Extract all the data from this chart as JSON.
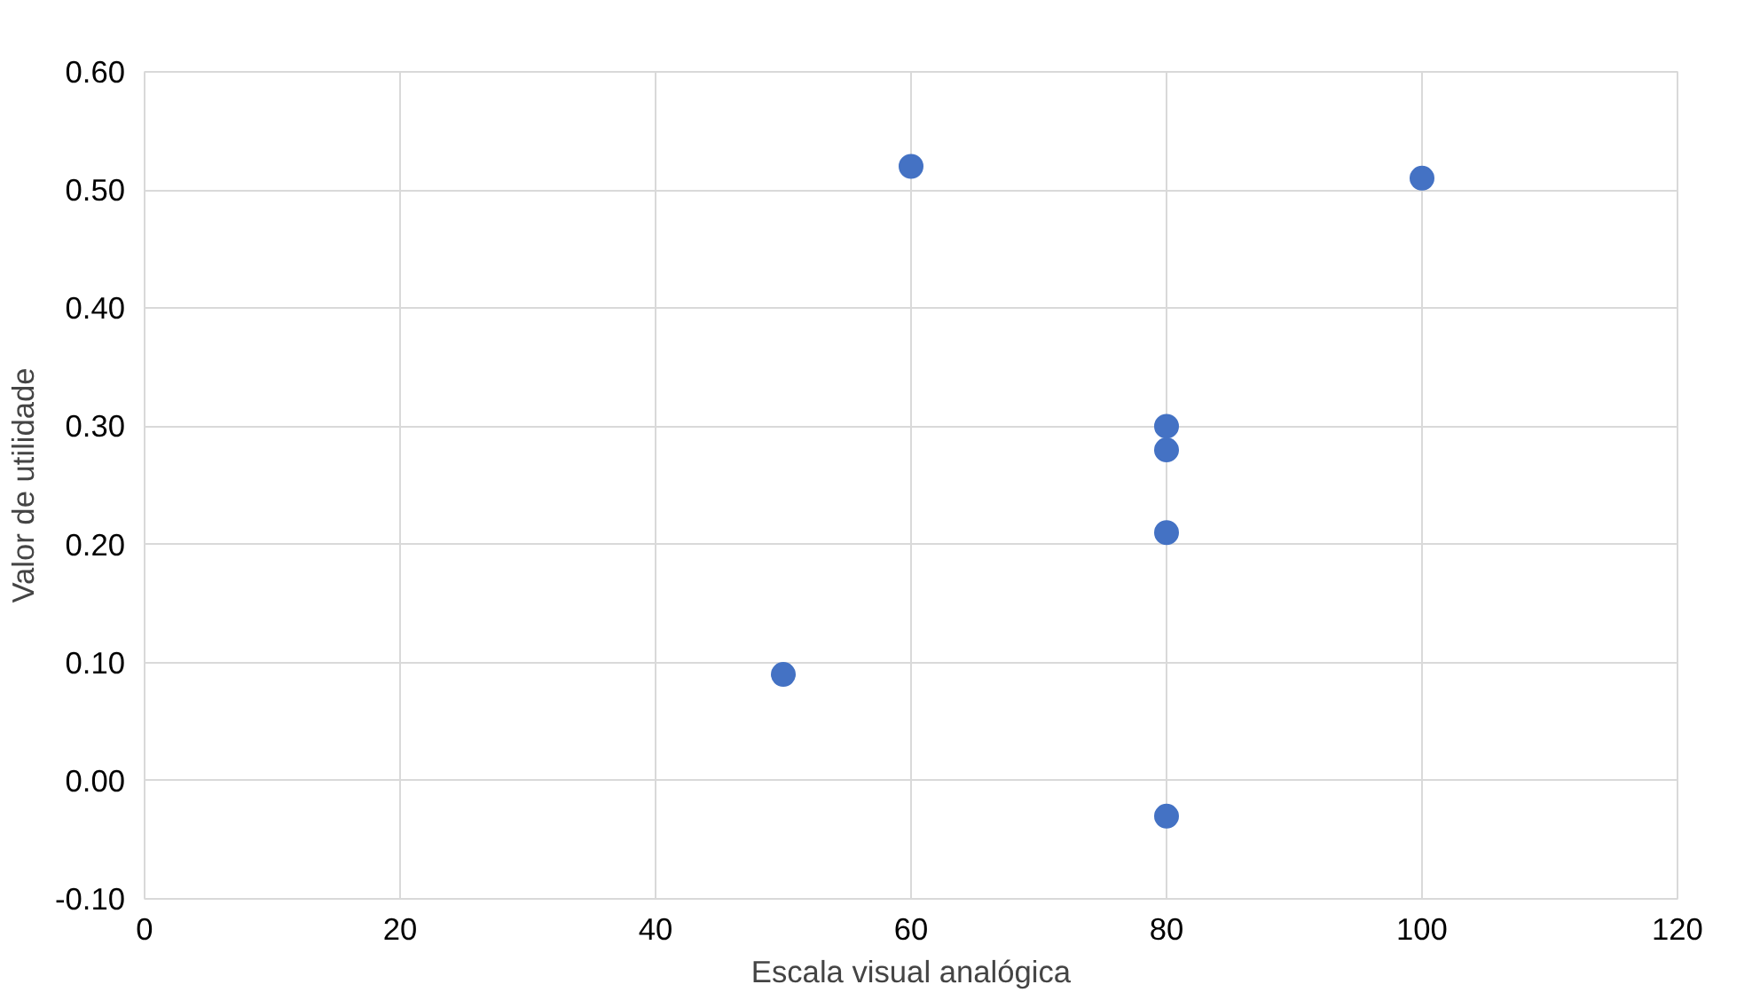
{
  "chart_data": {
    "type": "scatter",
    "xlabel": "Escala visual analógica",
    "ylabel": "Valor de utilidade",
    "x": [
      60,
      100,
      80,
      80,
      80,
      50,
      80
    ],
    "series": [
      {
        "color": "#4472c4",
        "values": [
          0.52,
          0.51,
          0.3,
          0.28,
          0.21,
          0.09,
          -0.03
        ]
      }
    ],
    "xlim": [
      0,
      120
    ],
    "xticks": [
      0,
      20,
      40,
      60,
      80,
      100,
      120
    ],
    "ylim": [
      -0.1,
      0.6
    ],
    "yticks": [
      {
        "value": -0.1,
        "label": "-0.10"
      },
      {
        "value": 0,
        "label": "0.00"
      },
      {
        "value": 0.1,
        "label": "0.10"
      },
      {
        "value": 0.2,
        "label": "0.20"
      },
      {
        "value": 0.3,
        "label": "0.30"
      },
      {
        "value": 0.4,
        "label": "0.40"
      },
      {
        "value": 0.5,
        "label": "0.50"
      },
      {
        "value": 0.6,
        "label": "0.60"
      }
    ],
    "grid": true,
    "marker": "circle"
  }
}
